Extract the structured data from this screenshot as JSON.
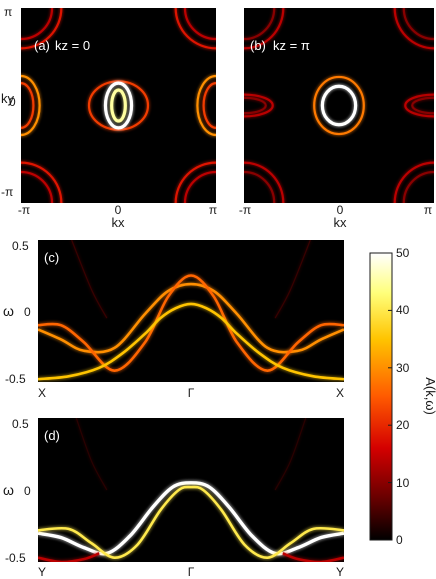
{
  "chart_data": [
    {
      "id": "a",
      "type": "heatmap",
      "panel_label": "(a)",
      "condition": "kz = 0",
      "xlabel": "kx",
      "ylabel": "ky",
      "x_ticks": [
        "-π",
        "0",
        "π"
      ],
      "y_ticks": [
        "π",
        "0",
        "-π"
      ],
      "xlim": [
        -3.1416,
        3.1416
      ],
      "ylim": [
        -3.1416,
        3.1416
      ],
      "features": [
        {
          "shape": "ellipse",
          "center": [
            0,
            0
          ],
          "radii": [
            0.95,
            0.78
          ],
          "intensity": 22
        },
        {
          "shape": "ellipse",
          "center": [
            0,
            0
          ],
          "radii": [
            0.42,
            0.72
          ],
          "intensity": 50
        },
        {
          "shape": "ellipse",
          "center": [
            0,
            0
          ],
          "radii": [
            0.22,
            0.5
          ],
          "intensity": 45
        },
        {
          "shape": "corner-pocket",
          "center": [
            3.1416,
            3.1416
          ],
          "radii": [
            1.3,
            1.3
          ],
          "intensity": 18
        },
        {
          "shape": "corner-pocket",
          "center": [
            3.1416,
            3.1416
          ],
          "radii": [
            1.0,
            1.0
          ],
          "intensity": 14
        },
        {
          "shape": "edge-pocket",
          "center": [
            3.1416,
            0
          ],
          "radii": [
            0.6,
            0.95
          ],
          "intensity": 30
        },
        {
          "shape": "edge-pocket",
          "center": [
            3.1416,
            0
          ],
          "radii": [
            0.4,
            0.72
          ],
          "intensity": 22
        }
      ]
    },
    {
      "id": "b",
      "type": "heatmap",
      "panel_label": "(b)",
      "condition": "kz = π",
      "xlabel": "kx",
      "ylabel": "",
      "x_ticks": [
        "-π",
        "0",
        "π"
      ],
      "y_ticks": [],
      "xlim": [
        -3.1416,
        3.1416
      ],
      "ylim": [
        -3.1416,
        3.1416
      ],
      "features": [
        {
          "shape": "ellipse",
          "center": [
            0,
            0
          ],
          "radii": [
            0.82,
            0.92
          ],
          "intensity": 28
        },
        {
          "shape": "ellipse",
          "center": [
            0,
            0
          ],
          "radii": [
            0.55,
            0.62
          ],
          "intensity": 50
        },
        {
          "shape": "corner-pocket",
          "center": [
            3.1416,
            3.1416
          ],
          "radii": [
            1.3,
            1.3
          ],
          "intensity": 14
        },
        {
          "shape": "corner-pocket",
          "center": [
            3.1416,
            3.1416
          ],
          "radii": [
            1.0,
            1.0
          ],
          "intensity": 10
        },
        {
          "shape": "edge-pocket",
          "center": [
            3.1416,
            0
          ],
          "radii": [
            0.95,
            0.35
          ],
          "intensity": 14
        },
        {
          "shape": "edge-pocket",
          "center": [
            3.1416,
            0
          ],
          "radii": [
            0.72,
            0.25
          ],
          "intensity": 10
        }
      ]
    },
    {
      "id": "c",
      "type": "line",
      "panel_label": "(c)",
      "ylabel": "ω",
      "x_ticks": [
        "X",
        "Γ",
        "X"
      ],
      "y_ticks": [
        "0.5",
        "0",
        "-0.5"
      ],
      "xlim": [
        -1,
        1
      ],
      "ylim": [
        -0.5,
        0.5
      ],
      "series": [
        {
          "x": [
            -1,
            -0.85,
            -0.7,
            -0.5,
            -0.3,
            -0.15,
            0,
            0.15,
            0.3,
            0.5,
            0.7,
            0.85,
            1
          ],
          "y": [
            -0.13,
            -0.2,
            -0.28,
            -0.26,
            -0.02,
            0.14,
            0.19,
            0.14,
            -0.02,
            -0.26,
            -0.28,
            -0.2,
            -0.13
          ],
          "intensity": 30
        },
        {
          "x": [
            -1,
            -0.85,
            -0.7,
            -0.5,
            -0.3,
            -0.15,
            0,
            0.15,
            0.3,
            0.5,
            0.7,
            0.85,
            1
          ],
          "y": [
            -0.1,
            -0.1,
            -0.22,
            -0.42,
            -0.22,
            0.1,
            0.25,
            0.1,
            -0.22,
            -0.42,
            -0.22,
            -0.1,
            -0.1
          ],
          "intensity": 26
        },
        {
          "x": [
            -1,
            -0.8,
            -0.6,
            -0.45,
            -0.3,
            -0.2,
            -0.1,
            0,
            0.1,
            0.2,
            0.3,
            0.45,
            0.6,
            0.8,
            1
          ],
          "y": [
            -0.48,
            -0.46,
            -0.4,
            -0.3,
            -0.16,
            -0.05,
            0.02,
            0.05,
            0.02,
            -0.05,
            -0.16,
            -0.3,
            -0.4,
            -0.46,
            -0.48
          ],
          "intensity": 35
        },
        {
          "x": [
            -0.78,
            -0.65,
            -0.55
          ],
          "y": [
            0.5,
            0.15,
            -0.05
          ],
          "intensity": 4
        },
        {
          "x": [
            0.55,
            0.65,
            0.78
          ],
          "y": [
            -0.05,
            0.15,
            0.5
          ],
          "intensity": 4
        }
      ]
    },
    {
      "id": "d",
      "type": "line",
      "panel_label": "(d)",
      "ylabel": "ω",
      "x_ticks": [
        "Y",
        "Γ",
        "Y"
      ],
      "y_ticks": [
        "0.5",
        "0",
        "-0.5"
      ],
      "xlim": [
        -1,
        1
      ],
      "ylim": [
        -0.5,
        0.5
      ],
      "series": [
        {
          "x": [
            -1,
            -0.85,
            -0.7,
            -0.55,
            -0.4,
            -0.25,
            -0.12,
            0,
            0.12,
            0.25,
            0.4,
            0.55,
            0.7,
            0.85,
            1
          ],
          "y": [
            -0.3,
            -0.33,
            -0.4,
            -0.44,
            -0.32,
            -0.12,
            0.02,
            0.05,
            0.02,
            -0.12,
            -0.32,
            -0.44,
            -0.4,
            -0.33,
            -0.3
          ],
          "intensity": 50
        },
        {
          "x": [
            -1,
            -0.8,
            -0.65,
            -0.5,
            -0.35,
            -0.2,
            -0.08,
            0,
            0.08,
            0.2,
            0.35,
            0.5,
            0.65,
            0.8,
            1
          ],
          "y": [
            -0.28,
            -0.27,
            -0.37,
            -0.47,
            -0.38,
            -0.14,
            0.0,
            0.02,
            0.0,
            -0.14,
            -0.38,
            -0.47,
            -0.37,
            -0.27,
            -0.28
          ],
          "intensity": 40
        },
        {
          "x": [
            -1,
            -0.85,
            -0.7,
            -0.6
          ],
          "y": [
            -0.47,
            -0.5,
            -0.48,
            -0.44
          ],
          "intensity": 14
        },
        {
          "x": [
            0.6,
            0.7,
            0.85,
            1
          ],
          "y": [
            -0.44,
            -0.48,
            -0.5,
            -0.47
          ],
          "intensity": 14
        },
        {
          "x": [
            -0.75,
            -0.65,
            -0.55
          ],
          "y": [
            0.5,
            0.2,
            0.0
          ],
          "intensity": 3
        },
        {
          "x": [
            0.55,
            0.65,
            0.75
          ],
          "y": [
            0.0,
            0.2,
            0.5
          ],
          "intensity": 3
        }
      ]
    }
  ],
  "colorbar": {
    "label": "A(k,ω)",
    "ticks": [
      "50",
      "40",
      "30",
      "20",
      "10",
      "0"
    ],
    "range": [
      0,
      50
    ],
    "colors": [
      "#000000",
      "#6a0000",
      "#d40000",
      "#ff5a00",
      "#ffc400",
      "#ffff7a",
      "#ffffff"
    ]
  }
}
